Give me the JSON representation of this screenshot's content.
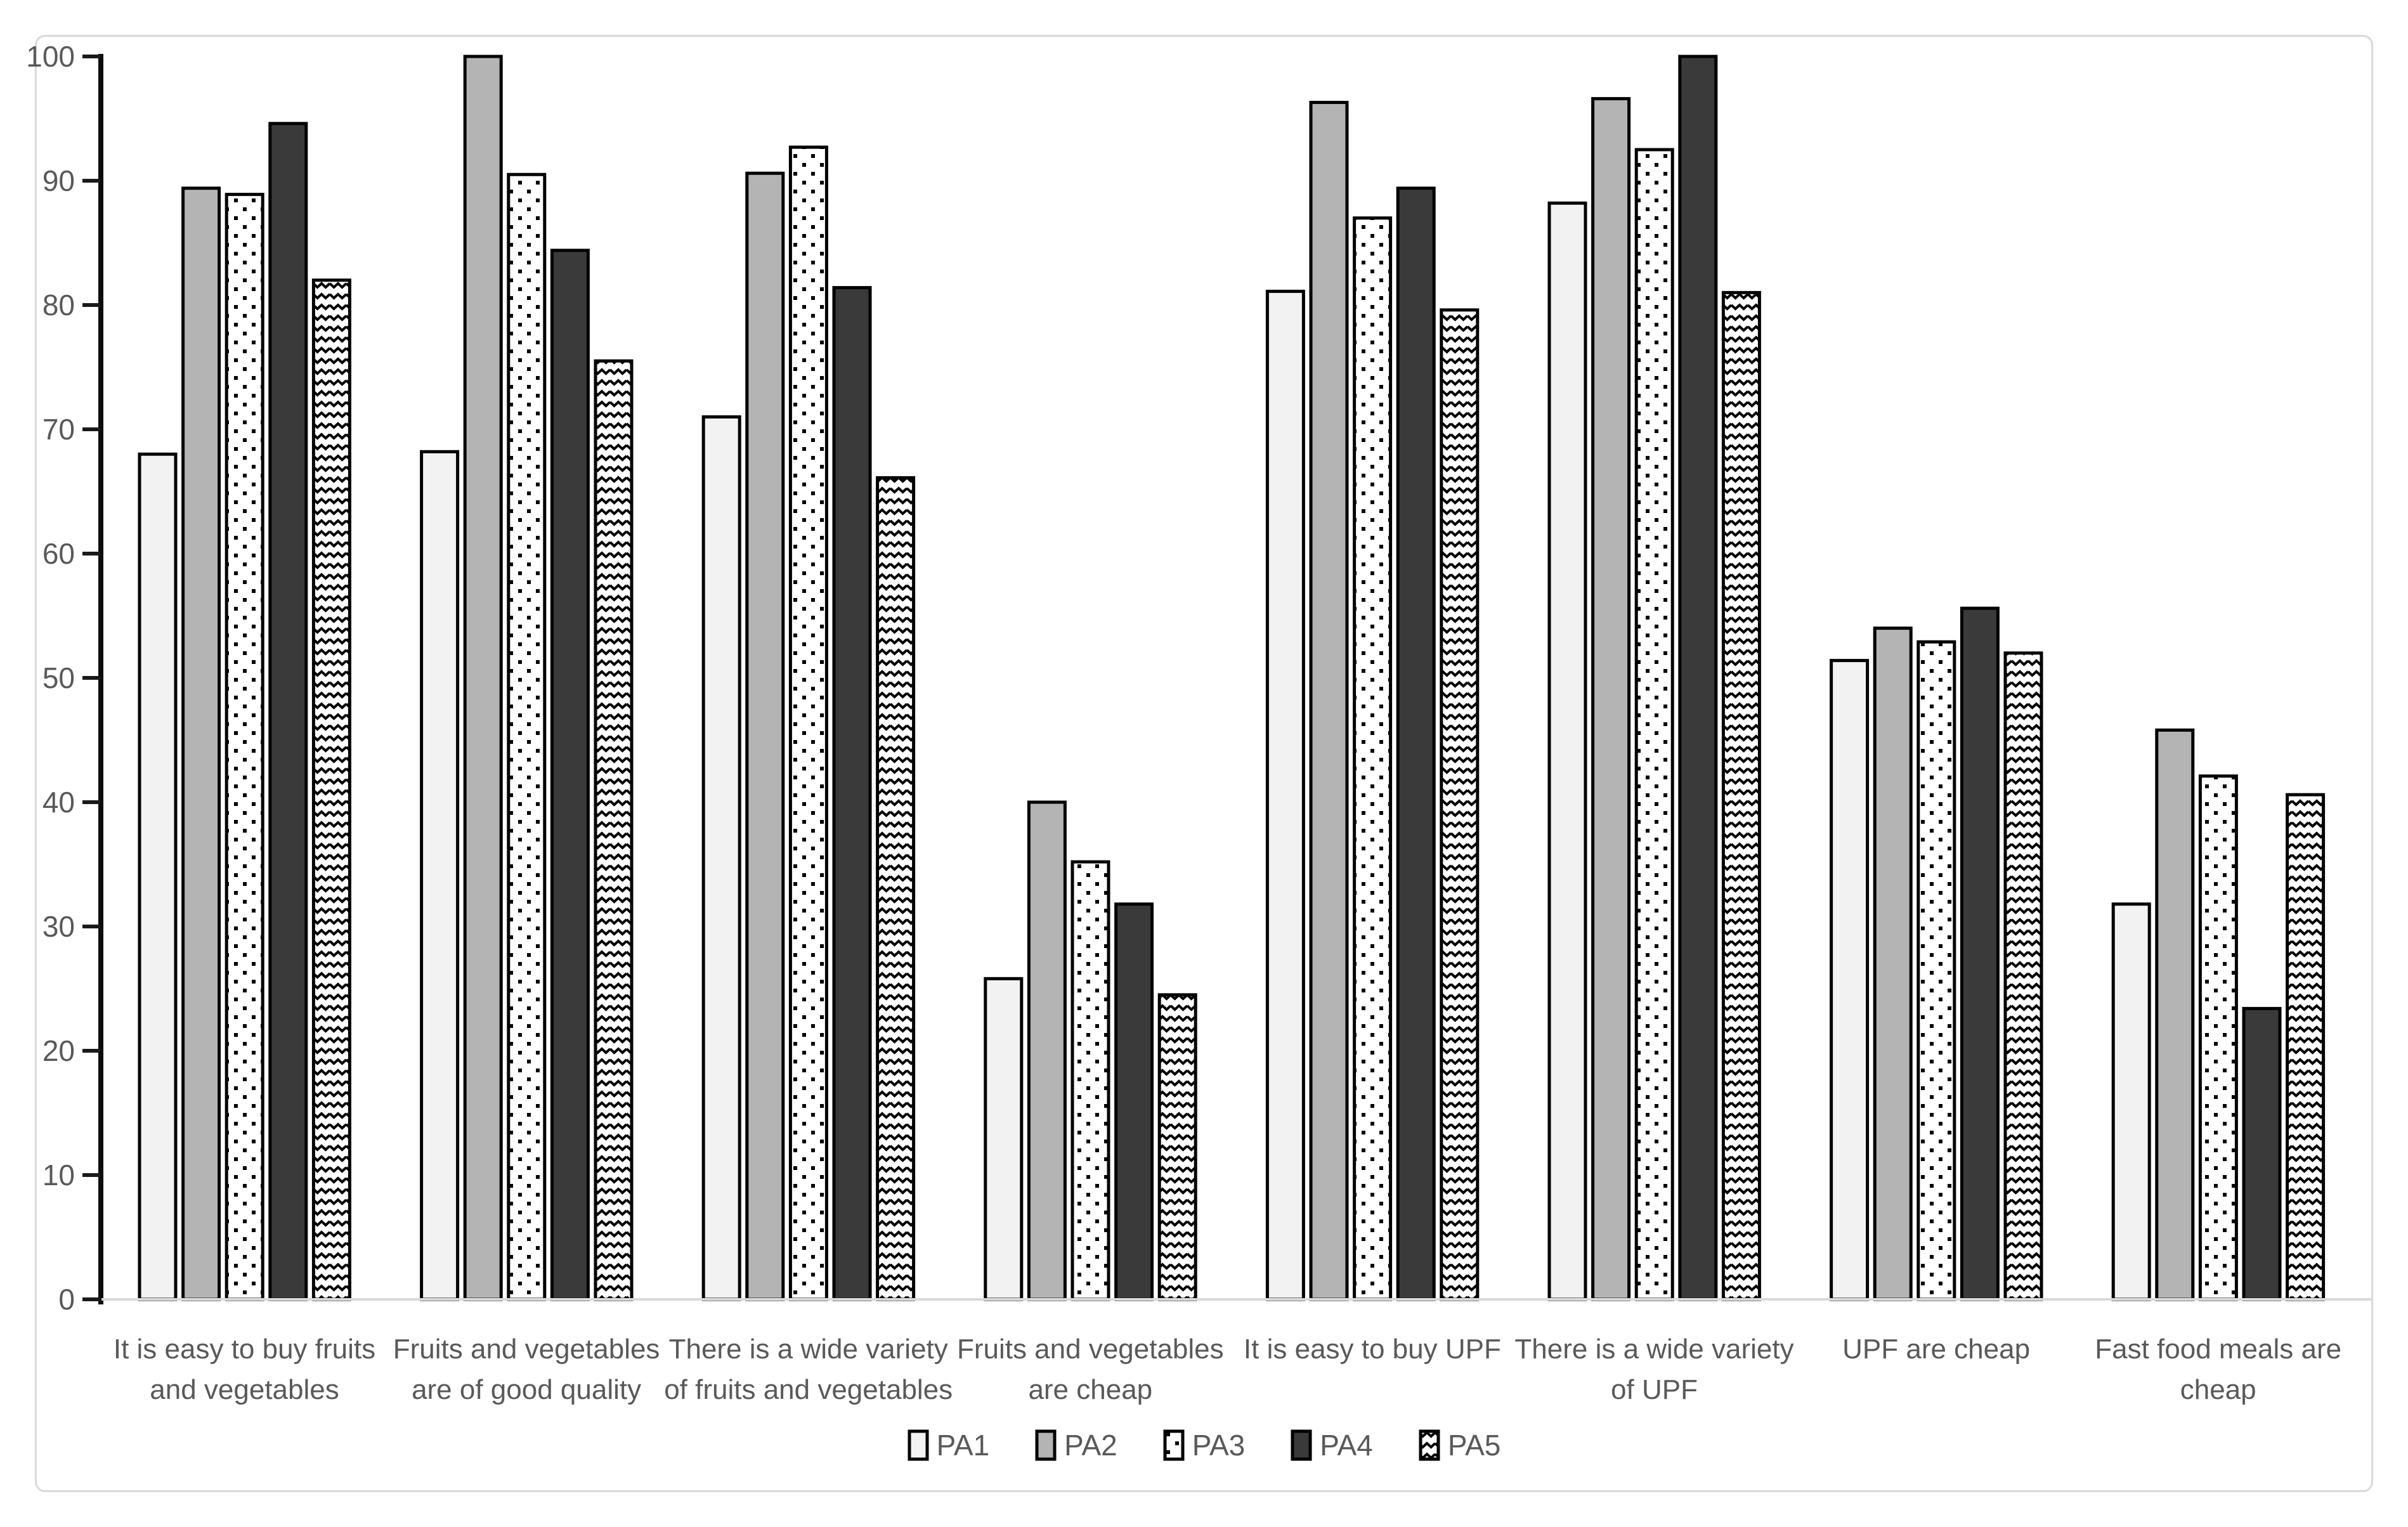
{
  "chart_data": {
    "type": "bar",
    "title": "",
    "xlabel": "",
    "ylabel": "",
    "ylim": [
      0,
      100
    ],
    "y_ticks": [
      0,
      10,
      20,
      30,
      40,
      50,
      60,
      70,
      80,
      90,
      100
    ],
    "grid": false,
    "legend_position": "bottom",
    "categories": [
      "It is easy to buy fruits and vegetables",
      "Fruits and vegetables are of good quality",
      "There is a wide variety of fruits and vegetables",
      "Fruits and vegetables are cheap",
      "It is easy to buy UPF",
      "There is a wide variety of UPF",
      "UPF are cheap",
      "Fast food meals are cheap"
    ],
    "series": [
      {
        "name": "PA1",
        "style": "solid-light",
        "values": [
          68.0,
          68.2,
          71.0,
          25.8,
          81.1,
          88.2,
          51.4,
          31.8
        ]
      },
      {
        "name": "PA2",
        "style": "solid-gray",
        "values": [
          89.4,
          100.0,
          90.6,
          40.0,
          96.3,
          96.6,
          54.0,
          45.8
        ]
      },
      {
        "name": "PA3",
        "style": "dots",
        "values": [
          88.9,
          90.5,
          92.7,
          35.2,
          87.0,
          92.5,
          52.9,
          42.1
        ]
      },
      {
        "name": "PA4",
        "style": "solid-dark",
        "values": [
          94.6,
          84.4,
          81.4,
          31.8,
          89.4,
          100.0,
          55.6,
          23.4
        ]
      },
      {
        "name": "PA5",
        "style": "wave",
        "values": [
          82.0,
          75.5,
          66.1,
          24.5,
          79.6,
          81.0,
          52.0,
          40.6
        ]
      }
    ]
  },
  "colors": {
    "bar_light": "#f2f2f2",
    "bar_gray": "#b4b4b4",
    "bar_dark": "#3a3a3a",
    "bar_stroke": "#000000",
    "pattern_ink": "#000000",
    "pattern_bg": "#ffffff",
    "axis_text": "#595959",
    "y_axis_line": "#0d0d0d",
    "x_axis_line": "#d9d9d9",
    "frame_border": "#d9d9d9"
  }
}
